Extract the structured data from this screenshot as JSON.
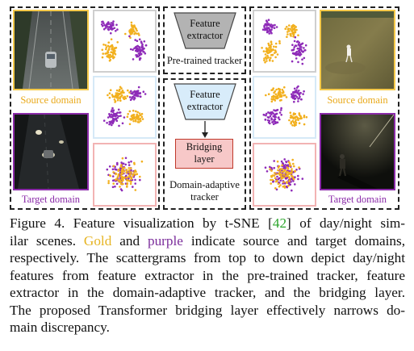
{
  "figure": {
    "left_panel": {
      "source_label": "Source domain",
      "target_label": "Target domain"
    },
    "right_panel": {
      "source_label": "Source domain",
      "target_label": "Target domain"
    },
    "pretrained": {
      "extractor_label_line1": "Feature",
      "extractor_label_line2": "extractor",
      "tracker_label": "Pre-trained tracker"
    },
    "adaptive": {
      "extractor_label_line1": "Feature",
      "extractor_label_line2": "extractor",
      "bridging_line1": "Bridging",
      "bridging_line2": "layer",
      "tracker_line1": "Domain-adaptive",
      "tracker_line2": "tracker"
    },
    "colors": {
      "source_gold": "#f2b01e",
      "target_purple": "#8e2bb8",
      "border_gold": "#f5c94a",
      "border_purple": "#8a2aa8",
      "border_gray": "#cfcfcf",
      "border_blue": "#d6e9f7",
      "border_pink": "#f2b3b3",
      "extractor_gray": "#b3b3b3",
      "extractor_blue": "#d8ecfa",
      "bridging_fill": "#f7c8c8",
      "bridging_border": "#c0392b"
    }
  },
  "caption": {
    "l1_prefix": "Figure 4.  Feature visualization by t-SNE [",
    "l1_cite": "42",
    "l1_suffix": "] of day/night sim-",
    "l2_a": "ilar scenes. ",
    "l2_gold": "Gold",
    "l2_b": " and ",
    "l2_purple": "purple",
    "l2_c": " indicate source and target domains,",
    "l3": "respectively. The scattergrams from top to down depict day/night",
    "l4": "features from feature extractor in the pre-trained tracker, feature",
    "l5": "extractor in the domain-adaptive tracker, and the bridging layer.",
    "l6": "The proposed Transformer bridging layer effectively narrows do-",
    "l7": "main discrepancy."
  }
}
